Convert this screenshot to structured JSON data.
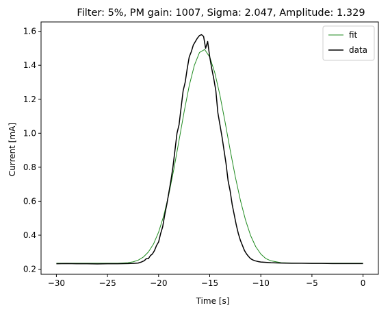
{
  "chart_data": {
    "type": "line",
    "title": "Filter: 5%, PM gain: 1007, Sigma: 2.047, Amplitude: 1.329",
    "xlabel": "Time [s]",
    "ylabel": "Current [mA]",
    "xlim": [
      -31.5,
      1.5
    ],
    "ylim": [
      0.17,
      1.655
    ],
    "xticks": [
      -30,
      -25,
      -20,
      -15,
      -10,
      -5,
      0
    ],
    "xtick_labels": [
      "−30",
      "−25",
      "−20",
      "−15",
      "−10",
      "−5",
      "0"
    ],
    "yticks": [
      0.2,
      0.4,
      0.6,
      0.8,
      1.0,
      1.2,
      1.4,
      1.6
    ],
    "ytick_labels": [
      "0.2",
      "0.4",
      "0.6",
      "0.8",
      "1.0",
      "1.2",
      "1.4",
      "1.6"
    ],
    "grid": false,
    "legend_position": "upper-right",
    "series": [
      {
        "name": "fit",
        "color": "#1f8a1f",
        "linewidth": 1,
        "x": [
          -30.0,
          -28.0,
          -26.0,
          -24.0,
          -23.0,
          -22.5,
          -22.0,
          -21.5,
          -21.0,
          -20.5,
          -20.0,
          -19.5,
          -19.0,
          -18.5,
          -18.0,
          -17.5,
          -17.0,
          -16.5,
          -16.0,
          -15.5,
          -15.0,
          -14.5,
          -14.0,
          -13.5,
          -13.0,
          -12.5,
          -12.0,
          -11.5,
          -11.0,
          -10.5,
          -10.0,
          -9.5,
          -9.0,
          -8.0,
          -6.0,
          -4.0,
          -2.0,
          0.0
        ],
        "y": [
          0.235,
          0.235,
          0.235,
          0.235,
          0.238,
          0.243,
          0.253,
          0.271,
          0.301,
          0.348,
          0.418,
          0.514,
          0.64,
          0.791,
          0.958,
          1.127,
          1.281,
          1.4,
          1.475,
          1.493,
          1.449,
          1.356,
          1.224,
          1.067,
          0.902,
          0.745,
          0.606,
          0.49,
          0.398,
          0.333,
          0.289,
          0.262,
          0.249,
          0.238,
          0.235,
          0.235,
          0.235,
          0.235
        ]
      },
      {
        "name": "data",
        "color": "#000000",
        "linewidth": 1.5,
        "x": [
          -30.0,
          -29.0,
          -28.0,
          -27.0,
          -26.0,
          -25.0,
          -24.0,
          -23.0,
          -22.5,
          -22.0,
          -21.7,
          -21.4,
          -21.2,
          -21.0,
          -20.8,
          -20.6,
          -20.4,
          -20.2,
          -20.0,
          -19.8,
          -19.6,
          -19.4,
          -19.2,
          -19.0,
          -18.8,
          -18.6,
          -18.4,
          -18.2,
          -18.0,
          -17.8,
          -17.6,
          -17.4,
          -17.2,
          -17.0,
          -16.8,
          -16.6,
          -16.4,
          -16.2,
          -16.0,
          -15.8,
          -15.6,
          -15.4,
          -15.2,
          -15.0,
          -14.8,
          -14.6,
          -14.4,
          -14.2,
          -14.0,
          -13.8,
          -13.6,
          -13.4,
          -13.2,
          -13.0,
          -12.8,
          -12.6,
          -12.4,
          -12.2,
          -12.0,
          -11.8,
          -11.6,
          -11.4,
          -11.2,
          -11.0,
          -10.8,
          -10.6,
          -10.4,
          -10.2,
          -10.0,
          -9.5,
          -9.0,
          -8.0,
          -7.0,
          -6.0,
          -5.0,
          -4.0,
          -3.0,
          -2.0,
          -1.0,
          0.0
        ],
        "y": [
          0.232,
          0.233,
          0.232,
          0.232,
          0.231,
          0.232,
          0.232,
          0.233,
          0.234,
          0.236,
          0.242,
          0.25,
          0.262,
          0.262,
          0.28,
          0.29,
          0.31,
          0.34,
          0.36,
          0.41,
          0.45,
          0.52,
          0.58,
          0.65,
          0.72,
          0.8,
          0.9,
          1.0,
          1.05,
          1.15,
          1.25,
          1.3,
          1.38,
          1.45,
          1.48,
          1.52,
          1.54,
          1.56,
          1.575,
          1.58,
          1.57,
          1.5,
          1.54,
          1.45,
          1.38,
          1.32,
          1.25,
          1.12,
          1.05,
          0.98,
          0.9,
          0.82,
          0.72,
          0.66,
          0.58,
          0.52,
          0.46,
          0.41,
          0.37,
          0.34,
          0.31,
          0.29,
          0.275,
          0.262,
          0.255,
          0.25,
          0.247,
          0.244,
          0.242,
          0.24,
          0.238,
          0.236,
          0.235,
          0.235,
          0.234,
          0.234,
          0.233,
          0.233,
          0.233,
          0.233
        ]
      }
    ]
  }
}
